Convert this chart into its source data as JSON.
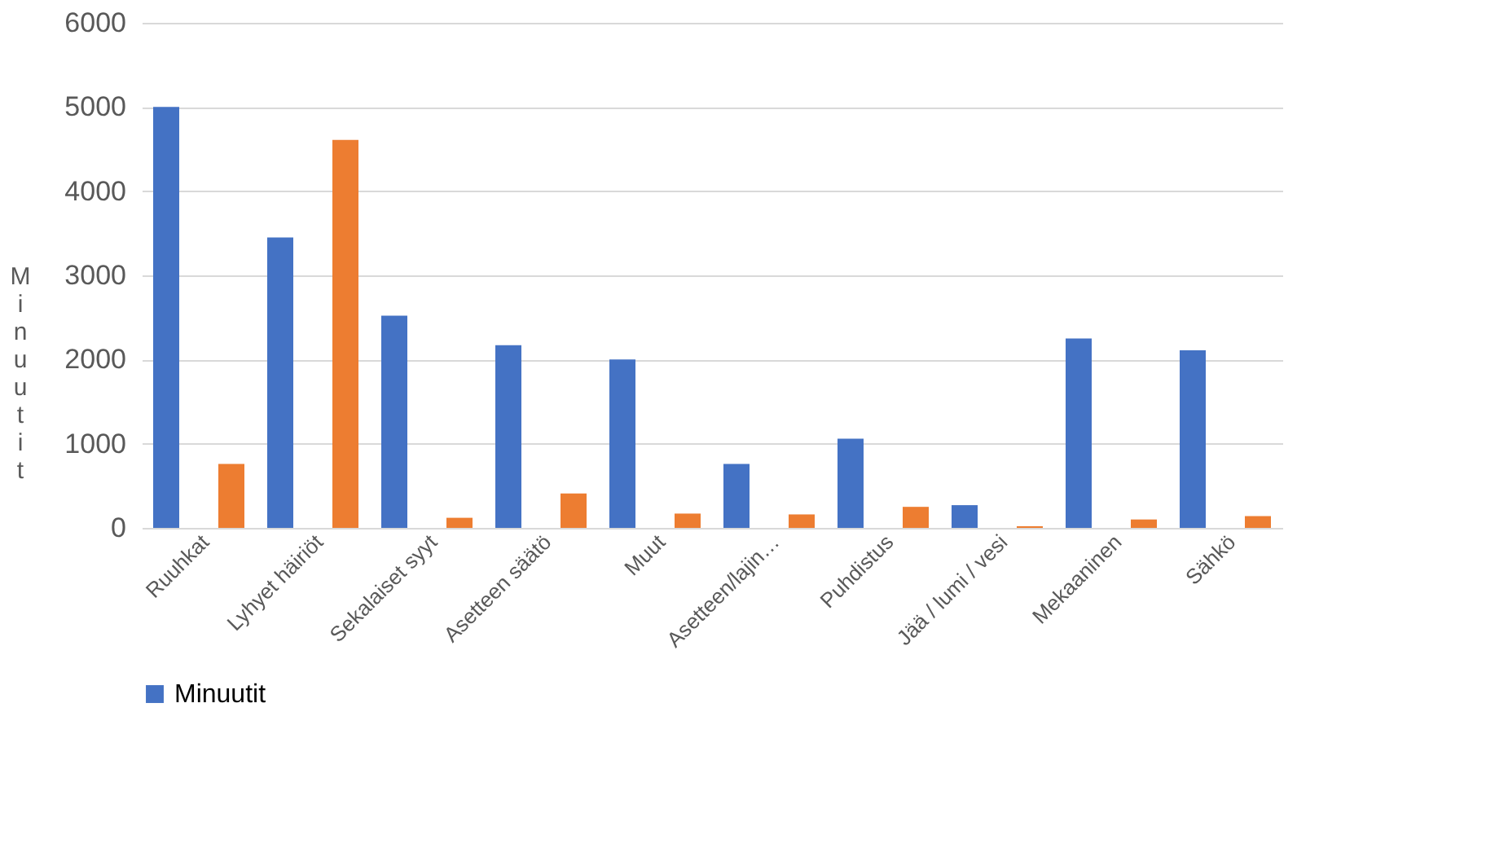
{
  "chart_data": {
    "type": "bar",
    "ylabel": "Minuutit",
    "categories": [
      "Ruuhkat",
      "Lyhyet häiriöt",
      "Sekalaiset syyt",
      "Asetteen säätö",
      "Muut",
      "Asetteen/lajin…",
      "Puhdistus",
      "Jää / lumi / vesi",
      "Mekaaninen",
      "Sähkö"
    ],
    "series": [
      {
        "name": "Minuutit",
        "color": "#4472c4",
        "values": [
          5000,
          3450,
          2520,
          2170,
          2000,
          760,
          1060,
          270,
          2250,
          2110
        ]
      },
      {
        "color": "#ed7d31",
        "values": [
          760,
          4610,
          120,
          410,
          170,
          160,
          250,
          20,
          100,
          140
        ]
      }
    ],
    "ylim": [
      0,
      6000
    ],
    "yticks": [
      0,
      1000,
      2000,
      3000,
      4000,
      5000,
      6000
    ],
    "grid": "y",
    "legend": "bottom"
  }
}
